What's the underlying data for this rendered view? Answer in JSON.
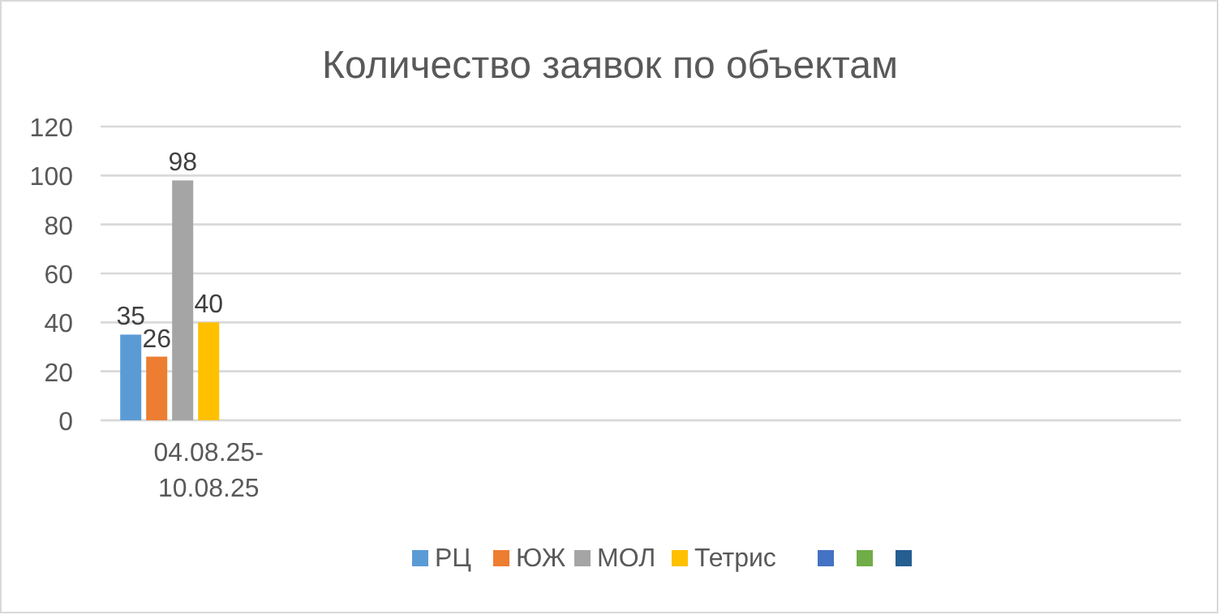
{
  "chart_data": {
    "type": "bar",
    "title": "Количество заявок по объектам",
    "categories": [
      "04.08.25-10.08.25",
      null,
      null,
      null,
      null
    ],
    "series": [
      {
        "name": "РЦ",
        "color": "#5b9bd5",
        "values": [
          35,
          null,
          null,
          null,
          null
        ]
      },
      {
        "name": "ЮЖ",
        "color": "#ed7d31",
        "values": [
          26,
          null,
          null,
          null,
          null
        ]
      },
      {
        "name": "МОЛ",
        "color": "#a5a5a5",
        "values": [
          98,
          null,
          null,
          null,
          null
        ]
      },
      {
        "name": "Тетрис",
        "color": "#ffc000",
        "values": [
          40,
          null,
          null,
          null,
          null
        ]
      },
      {
        "color": "#4472c4",
        "values": [
          null,
          null,
          null,
          null,
          null
        ]
      },
      {
        "color": "#70ad47",
        "values": [
          null,
          null,
          null,
          null,
          null
        ]
      },
      {
        "color": "#255e91",
        "values": [
          null,
          null,
          null,
          null,
          null
        ]
      }
    ],
    "ylim": [
      0,
      120
    ],
    "yticks": [
      0,
      20,
      40,
      60,
      80,
      100,
      120
    ],
    "grid": "y",
    "legend": "bottom",
    "data_labels": true
  }
}
